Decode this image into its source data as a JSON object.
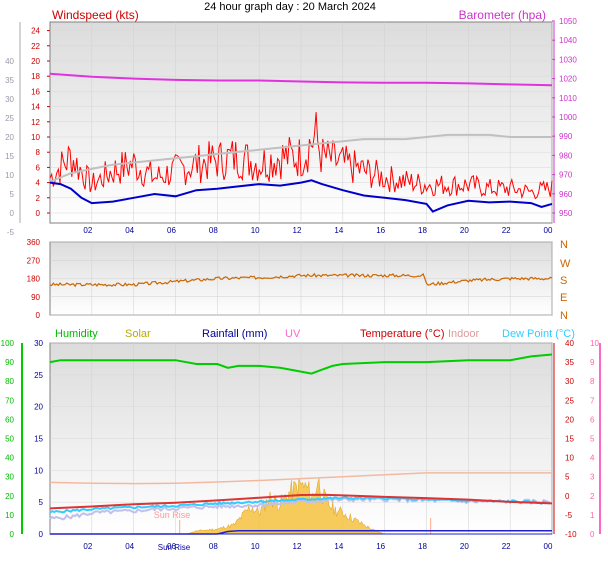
{
  "title": "24 hour graph day : 20 March 2024",
  "chart_data": [
    {
      "type": "line",
      "panel": "wind_baro",
      "left_label": "Windspeed (kts)",
      "right_label": "Barometer (hpa)",
      "x_ticks": [
        "02",
        "04",
        "06",
        "08",
        "10",
        "12",
        "14",
        "16",
        "18",
        "20",
        "22",
        "00"
      ],
      "x_range": [
        0,
        24
      ],
      "y_left_ticks": [
        0,
        2,
        4,
        6,
        8,
        10,
        12,
        14,
        16,
        18,
        20,
        22,
        24
      ],
      "y_left_range": [
        0,
        25
      ],
      "y_outer_ticks": [
        -5,
        0,
        5,
        10,
        15,
        20,
        25,
        30,
        35,
        40
      ],
      "y_outer_range": [
        -7,
        40
      ],
      "y_right_ticks": [
        950,
        960,
        970,
        980,
        990,
        1000,
        1010,
        1020,
        1030,
        1040,
        1050
      ],
      "y_right_range": [
        945,
        1050
      ],
      "series": [
        {
          "key": "barometer",
          "color": "#e033e0",
          "x": [
            0,
            2,
            4,
            6,
            8,
            10,
            12,
            14,
            16,
            18,
            20,
            22,
            24
          ],
          "y": [
            1022.5,
            1021,
            1020,
            1019.3,
            1019,
            1019,
            1018.5,
            1018,
            1017.8,
            1017.8,
            1017.5,
            1017,
            1016.5
          ]
        },
        {
          "key": "gust",
          "color": "#ff0000",
          "x": [
            0,
            1,
            2,
            3,
            4,
            5,
            6,
            7,
            8,
            9,
            10,
            11,
            12,
            12.7,
            13,
            14,
            15,
            16,
            17,
            18,
            19,
            20,
            21,
            22,
            23,
            24
          ],
          "y": [
            5,
            8,
            4,
            6,
            7,
            5,
            6,
            7,
            7.5,
            8,
            7,
            8,
            8,
            11,
            8,
            7,
            6,
            5,
            4.5,
            4,
            4,
            4,
            3.5,
            3.5,
            3,
            3.5
          ]
        },
        {
          "key": "wind",
          "color": "#e03030",
          "x": [
            0,
            1,
            2,
            3,
            4,
            5,
            6,
            7,
            8,
            9,
            10,
            11,
            12,
            13,
            14,
            15,
            16,
            17,
            18,
            19,
            20,
            21,
            22,
            23,
            24
          ],
          "y": [
            2,
            4,
            1,
            2,
            3,
            2,
            3,
            3.5,
            4,
            4.5,
            4,
            4.5,
            5,
            5,
            4,
            3,
            2.5,
            2,
            0.5,
            1.5,
            2,
            1.5,
            1.5,
            1.5,
            1.5
          ]
        },
        {
          "key": "wind_avg",
          "color": "#0000cc",
          "x": [
            0,
            0.5,
            1,
            1.5,
            2,
            3,
            4,
            5,
            6,
            7,
            8,
            9,
            10,
            11,
            12,
            12.5,
            13,
            14,
            15,
            16,
            17,
            18,
            18.3,
            19,
            20,
            21,
            22,
            23,
            23.5,
            24
          ],
          "y": [
            4,
            3.8,
            3.2,
            2,
            1.3,
            1.5,
            2,
            2.5,
            2.2,
            3,
            3.2,
            3.5,
            3.8,
            3.6,
            4,
            4.3,
            3.8,
            3,
            2.3,
            2,
            1.7,
            1.2,
            0.2,
            1,
            1.6,
            1.4,
            1.5,
            1.3,
            0.8,
            1.2
          ]
        },
        {
          "key": "outer_temp",
          "color": "#c0c0c0",
          "x": [
            0,
            1,
            2,
            3,
            4,
            5,
            6,
            7,
            8,
            9,
            10,
            11,
            12,
            13,
            14,
            15,
            16,
            17,
            18,
            19,
            20,
            21,
            22,
            23,
            24
          ],
          "y": [
            2,
            4,
            5,
            6,
            6.5,
            7,
            7.5,
            8,
            8.5,
            9,
            9.5,
            10,
            10.5,
            11,
            11.5,
            12,
            12,
            12,
            12.5,
            13,
            13,
            13,
            12.5,
            12.5,
            12.5
          ]
        }
      ]
    },
    {
      "type": "line",
      "panel": "direction",
      "y_left_ticks": [
        0,
        90,
        180,
        270,
        360
      ],
      "y_range": [
        0,
        360
      ],
      "y_right_labels": [
        "N",
        "W",
        "S",
        "E",
        "N"
      ],
      "series": [
        {
          "key": "direction",
          "color": "#cc6600",
          "x": [
            0,
            2,
            4,
            6,
            8,
            10,
            12,
            14,
            16,
            17.9,
            18,
            20,
            22,
            24
          ],
          "y": [
            150,
            150,
            150,
            165,
            180,
            185,
            195,
            195,
            195,
            195,
            150,
            170,
            180,
            180
          ]
        }
      ]
    },
    {
      "type": "area",
      "panel": "temp_hum_solar",
      "legend": [
        {
          "label": "Humidity",
          "color": "#00bb00"
        },
        {
          "label": "Solar",
          "color": "#bbaa00"
        },
        {
          "label": "Rainfall (mm)",
          "color": "#000099"
        },
        {
          "label": "UV",
          "color": "#ff66cc"
        },
        {
          "label": "Temperature (°C)",
          "color": "#cc0000"
        },
        {
          "label": "Indoor",
          "color": "#dd9999"
        },
        {
          "label": "Dew Point (°C)",
          "color": "#33ccff"
        }
      ],
      "annotations": [
        "Sun Rise",
        "Sun Rise"
      ],
      "y_left_ticks": [
        0,
        10,
        20,
        30,
        40,
        50,
        60,
        70,
        80,
        90,
        100
      ],
      "y_mid_ticks": [
        0,
        5,
        10,
        15,
        20,
        25,
        30
      ],
      "y_right_ticks": [
        -10,
        -5,
        0,
        5,
        10,
        15,
        20,
        25,
        30,
        35,
        40
      ],
      "y_uv_ticks": [
        0,
        1,
        2,
        3,
        4,
        5,
        6,
        7,
        8,
        9,
        10
      ],
      "series": [
        {
          "key": "humidity",
          "color": "#00cc00",
          "x": [
            0,
            0.5,
            6,
            7,
            8,
            8.5,
            9,
            10,
            11,
            12,
            12.5,
            13,
            13.5,
            14,
            16,
            18,
            20,
            22,
            23,
            24
          ],
          "y": [
            90,
            91,
            91,
            89,
            89,
            87,
            88,
            88,
            87,
            85,
            84,
            86,
            88,
            89,
            90,
            90,
            91,
            91,
            93,
            94
          ]
        },
        {
          "key": "indoor",
          "color": "#f3b9a0",
          "x": [
            0,
            2,
            4,
            6,
            8,
            10,
            12,
            14,
            16,
            18,
            20,
            22,
            24
          ],
          "y": [
            3.5,
            3.3,
            3.2,
            3.3,
            3.6,
            4,
            4.5,
            5,
            5.5,
            6,
            6,
            6,
            6
          ]
        },
        {
          "key": "temperature",
          "color": "#dd3333",
          "x": [
            0,
            2,
            4,
            6,
            8,
            10,
            12,
            13,
            14,
            16,
            18,
            20,
            22,
            24
          ],
          "y": [
            -3.3,
            -2.8,
            -2.2,
            -1.8,
            -1.2,
            -0.5,
            0.2,
            0.3,
            0.1,
            -0.3,
            -0.6,
            -1,
            -1.6,
            -2
          ]
        },
        {
          "key": "outer_temp_low",
          "color": "#c0c0ee",
          "x": [
            0,
            1,
            2,
            3,
            4,
            5,
            6,
            7,
            8,
            9,
            10,
            11,
            12,
            13,
            14,
            16,
            18,
            20,
            22,
            24
          ],
          "y": [
            -6,
            -5.5,
            -4.5,
            -4.2,
            -4,
            -3.5,
            -3.3,
            -3,
            -2.8,
            -2.6,
            -2.4,
            -2,
            -1.6,
            -1.2,
            -1,
            -1,
            -1.2,
            -1.5,
            -1.5,
            -1.5
          ]
        },
        {
          "key": "dew_point",
          "color": "#33ccff",
          "x": [
            0,
            2,
            4,
            6,
            8,
            10,
            12,
            13,
            14,
            16,
            18,
            20,
            22,
            24
          ],
          "y": [
            -4.3,
            -3.5,
            -3,
            -2.6,
            -2,
            -1.5,
            -1,
            -0.7,
            -0.6,
            -0.6,
            -1,
            -1.3,
            -1.5,
            -1.9
          ]
        },
        {
          "key": "solar",
          "color": "#f0c040",
          "x": [
            6.5,
            7,
            8,
            8.8,
            9.2,
            9.6,
            10,
            10.5,
            11,
            11.5,
            12,
            12.3,
            12.6,
            12.8,
            13,
            13.3,
            13.6,
            14,
            14.5,
            15,
            15.5,
            16
          ],
          "y": [
            0,
            0.5,
            0.8,
            1.5,
            3,
            4.5,
            3.5,
            6,
            5,
            7,
            8,
            7.5,
            6,
            9,
            6.5,
            5,
            4,
            3.5,
            2.5,
            1.5,
            0.6,
            0
          ]
        },
        {
          "key": "rainfall",
          "color": "#2222cc",
          "x": [
            0,
            8,
            8.5,
            9,
            10,
            12,
            14,
            16,
            18,
            20,
            22,
            24
          ],
          "y": [
            0,
            0,
            0.4,
            0.5,
            0.5,
            0.5,
            0.5,
            0.5,
            0.5,
            0.5,
            0.5,
            0.5
          ]
        }
      ]
    }
  ]
}
